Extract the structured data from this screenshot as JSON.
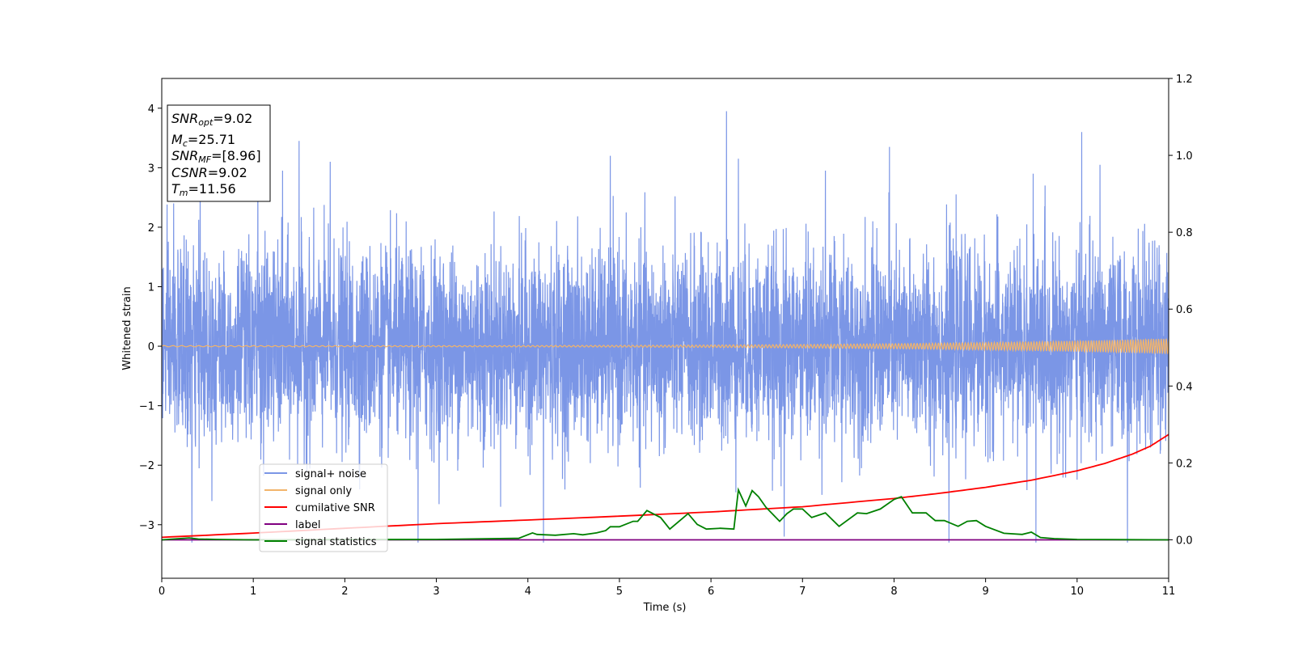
{
  "chart_data": {
    "type": "line",
    "xlabel": "Time (s)",
    "ylabel": "Whitened strain",
    "xlim": [
      0,
      11
    ],
    "ylim": [
      -3.9,
      4.5
    ],
    "y2lim": [
      -0.1,
      1.2
    ],
    "x_ticks": [
      0,
      1,
      2,
      3,
      4,
      5,
      6,
      7,
      8,
      9,
      10,
      11
    ],
    "y_ticks": [
      -3,
      -2,
      -1,
      0,
      1,
      2,
      3,
      4
    ],
    "y_tick_labels": [
      "−3",
      "−2",
      "−1",
      "0",
      "1",
      "2",
      "3",
      "4"
    ],
    "y2_ticks": [
      0.0,
      0.2,
      0.4,
      0.6,
      0.8,
      1.0,
      1.2
    ],
    "y2_tick_labels": [
      "0.0",
      "0.2",
      "0.4",
      "0.6",
      "0.8",
      "1.0",
      "1.2"
    ],
    "legend_position": "lower-left",
    "annotation": {
      "snr_opt": {
        "var": "SNR",
        "sub": "opt",
        "value": "=9.02"
      },
      "mc": {
        "var": "M",
        "sub": "c",
        "value": "=25.71"
      },
      "snr_mf": {
        "var": "SNR",
        "sub": "MF",
        "value": "=[8.96]"
      },
      "csnr": {
        "var": "CSNR",
        "sub": "",
        "value": "=9.02"
      },
      "tm": {
        "var": "T",
        "sub": "m",
        "value": "=11.56"
      }
    },
    "series": [
      {
        "name": "signal+ noise",
        "color": "#7b96e6",
        "axis": "left",
        "kind": "noise",
        "sigma": 0.8,
        "outliers": [
          [
            0.13,
            2.4
          ],
          [
            0.33,
            -3.3
          ],
          [
            0.42,
            2.9
          ],
          [
            1.05,
            3.1
          ],
          [
            1.32,
            2.95
          ],
          [
            1.5,
            3.45
          ],
          [
            1.84,
            3.1
          ],
          [
            2.8,
            -3.3
          ],
          [
            4.17,
            -3.3
          ],
          [
            4.9,
            3.2
          ],
          [
            6.17,
            3.95
          ],
          [
            6.3,
            3.15
          ],
          [
            6.8,
            -3.2
          ],
          [
            7.25,
            2.95
          ],
          [
            7.95,
            3.35
          ],
          [
            8.6,
            -3.3
          ],
          [
            9.52,
            2.9
          ],
          [
            9.55,
            -3.3
          ],
          [
            9.65,
            2.7
          ],
          [
            10.05,
            3.6
          ],
          [
            10.25,
            3.05
          ],
          [
            10.55,
            -3.3
          ]
        ]
      },
      {
        "name": "signal only",
        "color": "#f2b46b",
        "axis": "left",
        "kind": "chirp",
        "amp_start": 0.01,
        "amp_end": 0.13
      },
      {
        "name": "cumilative SNR",
        "color": "#ff0000",
        "axis": "right",
        "x": [
          0,
          1,
          2,
          3,
          4,
          5,
          6,
          7,
          8,
          8.5,
          9,
          9.5,
          10,
          10.3,
          10.6,
          10.8,
          11
        ],
        "y": [
          0.0065,
          0.0175,
          0.03,
          0.042,
          0.0515,
          0.0615,
          0.0725,
          0.086,
          0.1075,
          0.121,
          0.1365,
          0.155,
          0.1795,
          0.1985,
          0.2225,
          0.2435,
          0.274
        ]
      },
      {
        "name": "label",
        "color": "#800080",
        "axis": "right",
        "x": [
          0,
          11
        ],
        "y": [
          0,
          0
        ]
      },
      {
        "name": "signal statistics",
        "color": "#008000",
        "axis": "right",
        "x": [
          0,
          0.3,
          0.4,
          0.6,
          1.0,
          2.0,
          3.0,
          3.9,
          4.05,
          4.1,
          4.3,
          4.5,
          4.6,
          4.75,
          4.85,
          4.9,
          5.0,
          5.15,
          5.2,
          5.3,
          5.45,
          5.55,
          5.7,
          5.75,
          5.85,
          5.95,
          6.1,
          6.25,
          6.3,
          6.38,
          6.45,
          6.52,
          6.6,
          6.75,
          6.83,
          6.9,
          7.0,
          7.1,
          7.25,
          7.4,
          7.6,
          7.7,
          7.85,
          8.0,
          8.08,
          8.2,
          8.35,
          8.45,
          8.55,
          8.7,
          8.8,
          8.9,
          9.0,
          9.2,
          9.4,
          9.5,
          9.6,
          9.75,
          10.0,
          11.0
        ],
        "y": [
          0,
          0.005,
          0.002,
          0.001,
          0,
          0.0005,
          0.001,
          0.004,
          0.018,
          0.014,
          0.012,
          0.016,
          0.013,
          0.018,
          0.024,
          0.034,
          0.034,
          0.048,
          0.048,
          0.076,
          0.058,
          0.028,
          0.058,
          0.068,
          0.04,
          0.028,
          0.03,
          0.028,
          0.13,
          0.088,
          0.128,
          0.112,
          0.085,
          0.048,
          0.068,
          0.08,
          0.08,
          0.058,
          0.07,
          0.035,
          0.07,
          0.068,
          0.08,
          0.105,
          0.112,
          0.07,
          0.07,
          0.05,
          0.05,
          0.035,
          0.048,
          0.05,
          0.035,
          0.017,
          0.014,
          0.02,
          0.006,
          0.003,
          0.001,
          0
        ]
      }
    ]
  }
}
